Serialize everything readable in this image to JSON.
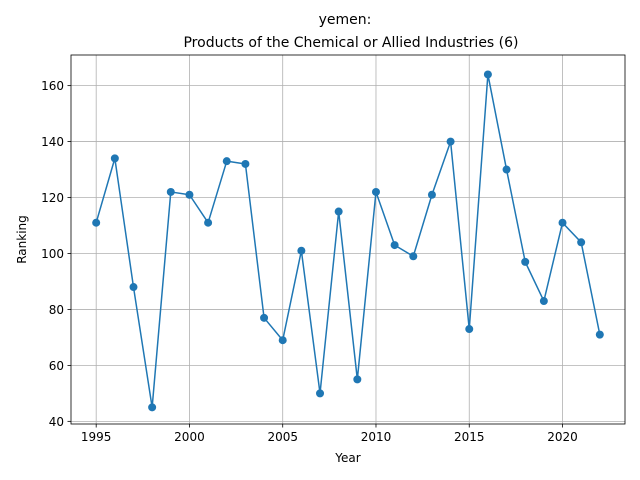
{
  "chart_data": {
    "type": "line",
    "title": "yemen:",
    "subtitle": "Products of the Chemical or Allied Industries (6)",
    "xlabel": "Year",
    "ylabel": "Ranking",
    "xlim": [
      1993.65,
      2023.35
    ],
    "ylim": [
      39.05,
      170.95
    ],
    "xticks": [
      1995,
      2000,
      2005,
      2010,
      2015,
      2020
    ],
    "yticks": [
      40,
      60,
      80,
      100,
      120,
      140,
      160
    ],
    "grid": true,
    "series": [
      {
        "color": "#1f77b4",
        "marker": "circle",
        "x": [
          1995,
          1996,
          1997,
          1998,
          1999,
          2000,
          2001,
          2002,
          2003,
          2004,
          2005,
          2006,
          2007,
          2008,
          2009,
          2010,
          2011,
          2012,
          2013,
          2014,
          2015,
          2016,
          2017,
          2018,
          2019,
          2020,
          2021,
          2022
        ],
        "y": [
          111,
          134,
          88,
          45,
          122,
          121,
          111,
          133,
          132,
          77,
          69,
          101,
          50,
          115,
          55,
          122,
          103,
          99,
          121,
          140,
          73,
          164,
          130,
          97,
          83,
          111,
          104,
          71
        ]
      }
    ]
  }
}
